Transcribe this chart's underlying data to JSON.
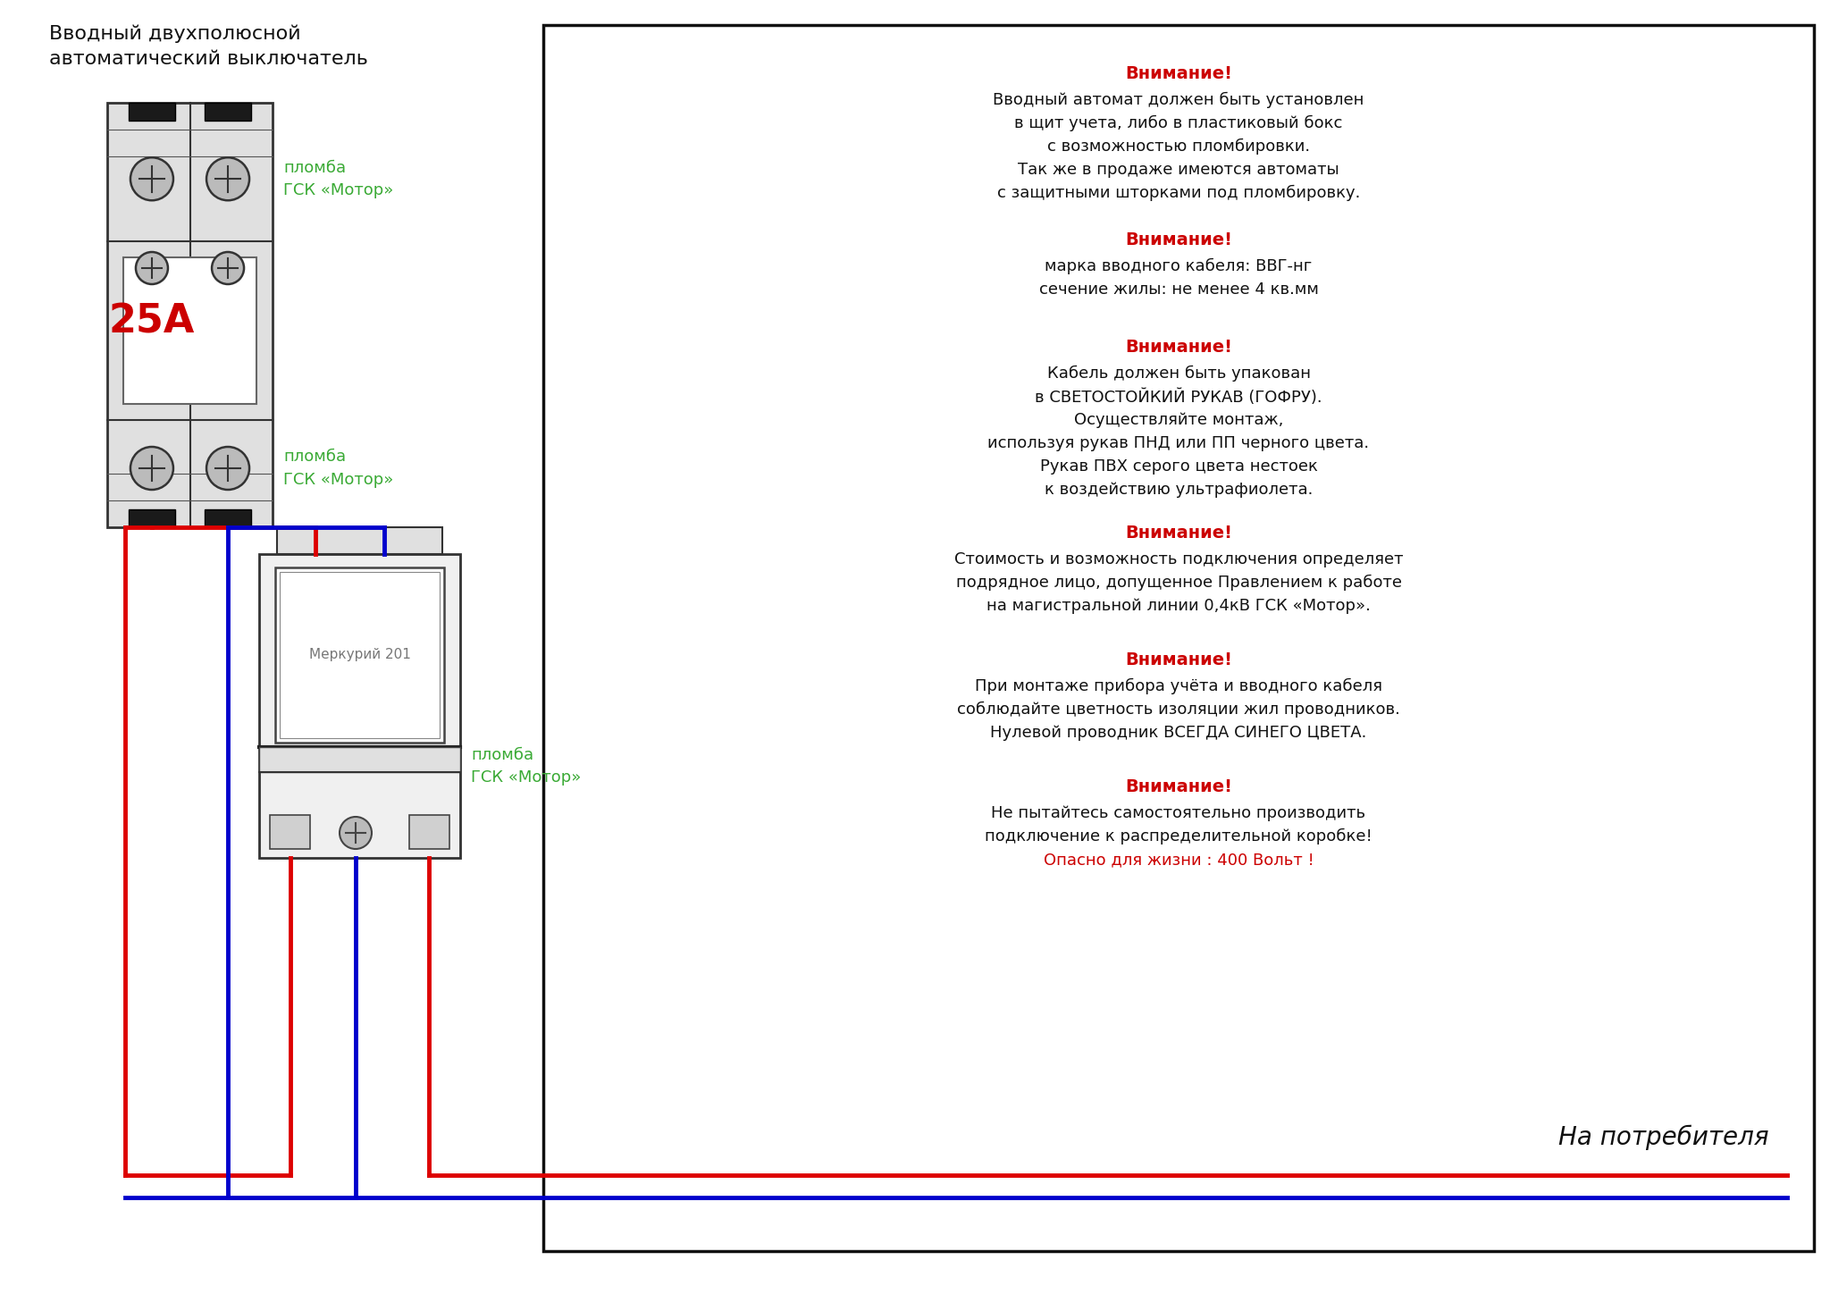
{
  "title_text": "Вводный двухполюсной\nавтоматический выключатель",
  "label_plomba_top": "пломба\nГСК «Мотор»",
  "label_plomba_mid": "пломба\nГСК «Мотор»",
  "label_plomba_bot": "пломба\nГСК «Мотор»",
  "label_merkury": "Меркурий 201",
  "label_25A": "25А",
  "label_na_potrebitelya": "На потребителя",
  "green_color": "#3aaa35",
  "red_color": "#cc0000",
  "wire_red": "#dd0000",
  "wire_blue": "#0000cc",
  "dark": "#222222",
  "gray_cb": "#d8d8d8",
  "wire_lw": 3.5,
  "box_text_blocks": [
    {
      "header": "Внимание!",
      "body": "Вводный автомат должен быть установлен\nв щит учета, либо в пластиковый бокс\nс возможностью пломбировки.\nТак же в продаже имеются автоматы\nс защитными шторками под пломбировку.",
      "footer": null
    },
    {
      "header": "Внимание!",
      "body": "марка вводного кабеля: ВВГ-нг\nсечение жилы: не менее 4 кв.мм",
      "footer": null
    },
    {
      "header": "Внимание!",
      "body": "Кабель должен быть упакован\nв СВЕТОСТОЙКИЙ РУКАВ (ГОФРУ).\nОсуществляйте монтаж,\nиспользуя рукав ПНД или ПП черного цвета.\nРукав ПВХ серого цвета нестоек\nк воздействию ультрафиолета.",
      "footer": null
    },
    {
      "header": "Внимание!",
      "body": "Стоимость и возможность подключения определяет\nподрядное лицо, допущенное Правлением к работе\nна магистральной линии 0,4кВ ГСК «Мотор».",
      "footer": null
    },
    {
      "header": "Внимание!",
      "body": "При монтаже прибора учёта и вводного кабеля\nсоблюдайте цветность изоляции жил проводников.\nНулевой проводник ВСЕГДА СИНЕГО ЦВЕТА.",
      "footer": null
    },
    {
      "header": "Внимание!",
      "body": "Не пытайтесь самостоятельно производить\nподключение к распределительной коробке!",
      "footer": "Опасно для жизни : 400 Вольт !"
    }
  ]
}
